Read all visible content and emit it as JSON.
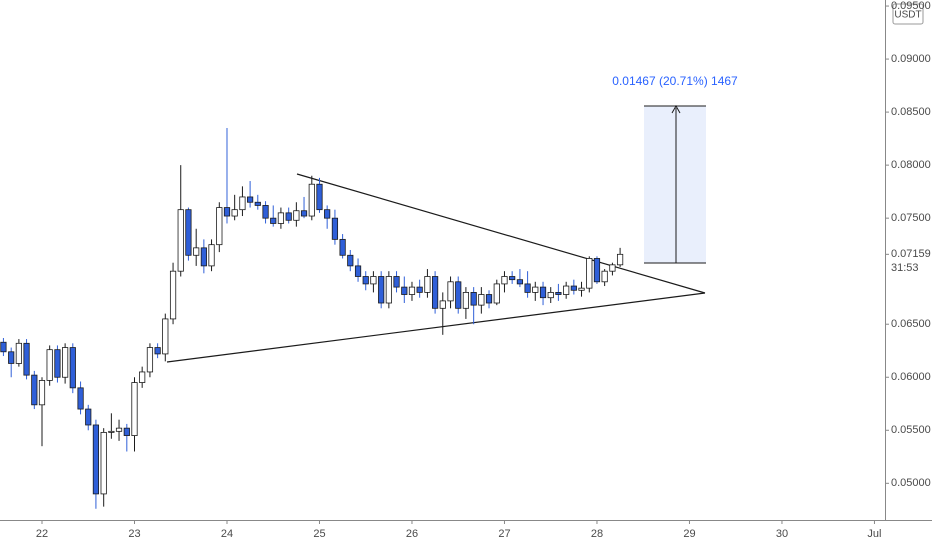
{
  "chart_data": {
    "type": "candlestick",
    "currency": "USDT",
    "x": [
      21.583,
      21.667,
      21.75,
      21.833,
      21.917,
      22,
      22.083,
      22.167,
      22.25,
      22.333,
      22.417,
      22.5,
      22.583,
      22.667,
      22.75,
      22.833,
      22.917,
      23,
      23.083,
      23.167,
      23.25,
      23.333,
      23.417,
      23.5,
      23.583,
      23.667,
      23.75,
      23.833,
      23.917,
      24,
      24.083,
      24.167,
      24.25,
      24.333,
      24.417,
      24.5,
      24.583,
      24.667,
      24.75,
      24.833,
      24.917,
      25,
      25.083,
      25.167,
      25.25,
      25.333,
      25.417,
      25.5,
      25.583,
      25.667,
      25.75,
      25.833,
      25.917,
      26,
      26.083,
      26.167,
      26.25,
      26.333,
      26.417,
      26.5,
      26.583,
      26.667,
      26.75,
      26.833,
      26.917,
      27,
      27.083,
      27.167,
      27.25,
      27.333,
      27.417,
      27.5,
      27.583,
      27.667,
      27.75,
      27.833,
      27.917,
      28,
      28.083,
      28.167,
      28.25
    ],
    "open": [
      0.0633,
      0.0624,
      0.0613,
      0.0632,
      0.0602,
      0.0574,
      0.0597,
      0.0626,
      0.06,
      0.0628,
      0.059,
      0.057,
      0.0555,
      0.049,
      0.0548,
      0.0549,
      0.0552,
      0.0545,
      0.0595,
      0.0605,
      0.0628,
      0.0622,
      0.0655,
      0.07,
      0.0758,
      0.0715,
      0.0722,
      0.0705,
      0.0725,
      0.076,
      0.0752,
      0.0758,
      0.077,
      0.0765,
      0.0762,
      0.075,
      0.0745,
      0.0755,
      0.0748,
      0.0757,
      0.0752,
      0.0782,
      0.0758,
      0.075,
      0.073,
      0.0715,
      0.0705,
      0.0695,
      0.0688,
      0.0695,
      0.067,
      0.0695,
      0.0685,
      0.0678,
      0.0685,
      0.068,
      0.0695,
      0.0665,
      0.0672,
      0.069,
      0.0665,
      0.068,
      0.0668,
      0.0678,
      0.067,
      0.0688,
      0.0695,
      0.0692,
      0.0688,
      0.068,
      0.0685,
      0.0675,
      0.068,
      0.0678,
      0.0686,
      0.0682,
      0.0684,
      0.0712,
      0.069,
      0.07,
      0.0706
    ],
    "high": [
      0.0637,
      0.0628,
      0.0636,
      0.0636,
      0.0606,
      0.06,
      0.063,
      0.063,
      0.0632,
      0.0632,
      0.0596,
      0.0574,
      0.056,
      0.0552,
      0.0566,
      0.056,
      0.0556,
      0.06,
      0.061,
      0.0632,
      0.0632,
      0.066,
      0.0708,
      0.08,
      0.076,
      0.074,
      0.073,
      0.073,
      0.0765,
      0.0835,
      0.0772,
      0.078,
      0.0785,
      0.0772,
      0.0766,
      0.0762,
      0.076,
      0.076,
      0.0765,
      0.077,
      0.079,
      0.0788,
      0.0762,
      0.0758,
      0.0735,
      0.072,
      0.0712,
      0.07,
      0.07,
      0.07,
      0.07,
      0.07,
      0.0695,
      0.069,
      0.0692,
      0.0702,
      0.07,
      0.068,
      0.0695,
      0.0695,
      0.0685,
      0.0685,
      0.0685,
      0.0682,
      0.0692,
      0.07,
      0.07,
      0.0702,
      0.07,
      0.069,
      0.069,
      0.0685,
      0.0688,
      0.069,
      0.0692,
      0.069,
      0.0714,
      0.0714,
      0.0702,
      0.0708,
      0.0722
    ],
    "low": [
      0.062,
      0.06,
      0.061,
      0.0598,
      0.057,
      0.0535,
      0.0592,
      0.0595,
      0.0594,
      0.0585,
      0.0565,
      0.055,
      0.0476,
      0.0478,
      0.0542,
      0.054,
      0.053,
      0.053,
      0.059,
      0.06,
      0.0618,
      0.0615,
      0.065,
      0.0695,
      0.071,
      0.0705,
      0.0698,
      0.07,
      0.0718,
      0.0745,
      0.0748,
      0.0752,
      0.076,
      0.0758,
      0.0745,
      0.0742,
      0.074,
      0.0745,
      0.0742,
      0.075,
      0.0748,
      0.0755,
      0.074,
      0.0725,
      0.0712,
      0.07,
      0.069,
      0.0682,
      0.068,
      0.0665,
      0.0665,
      0.068,
      0.067,
      0.0672,
      0.0675,
      0.0675,
      0.066,
      0.064,
      0.0665,
      0.066,
      0.0655,
      0.065,
      0.066,
      0.0665,
      0.0668,
      0.068,
      0.0688,
      0.0685,
      0.0675,
      0.0672,
      0.0668,
      0.067,
      0.0672,
      0.0674,
      0.0678,
      0.0676,
      0.068,
      0.0688,
      0.0686,
      0.0696,
      0.0704
    ],
    "close": [
      0.0624,
      0.0613,
      0.0632,
      0.0602,
      0.0574,
      0.0597,
      0.0626,
      0.06,
      0.0628,
      0.059,
      0.057,
      0.0555,
      0.049,
      0.0548,
      0.0549,
      0.0552,
      0.0545,
      0.0595,
      0.0605,
      0.0628,
      0.0622,
      0.0655,
      0.07,
      0.0758,
      0.0715,
      0.0722,
      0.0705,
      0.0725,
      0.076,
      0.0752,
      0.0758,
      0.077,
      0.0765,
      0.0762,
      0.075,
      0.0745,
      0.0755,
      0.0748,
      0.0757,
      0.0752,
      0.0782,
      0.0758,
      0.075,
      0.073,
      0.0715,
      0.0705,
      0.0695,
      0.0688,
      0.0695,
      0.067,
      0.0695,
      0.0685,
      0.0678,
      0.0685,
      0.068,
      0.0695,
      0.0665,
      0.0672,
      0.069,
      0.0665,
      0.068,
      0.0668,
      0.0678,
      0.067,
      0.0688,
      0.0695,
      0.0692,
      0.0688,
      0.068,
      0.0685,
      0.0675,
      0.068,
      0.0678,
      0.0686,
      0.0682,
      0.0684,
      0.0712,
      0.069,
      0.07,
      0.0706,
      0.07159
    ],
    "up_color": "#ffffff",
    "down_color": "#2f5fd8",
    "outline_color": "#1b1b1b",
    "xlim": [
      21.546,
      31.114
    ],
    "ylim": [
      0.04654,
      0.09557
    ],
    "xticks": [
      22,
      23,
      24,
      25,
      26,
      27,
      28,
      29,
      30,
      {
        "value": 31,
        "label": "Jul"
      }
    ],
    "yticks": [
      {
        "value": 0.095,
        "label": "0.09500"
      },
      {
        "value": 0.09,
        "label": "0.09000"
      },
      {
        "value": 0.085,
        "label": "0.08500"
      },
      {
        "value": 0.08,
        "label": "0.08000"
      },
      {
        "value": 0.075,
        "label": "0.07500"
      },
      {
        "value": 0.065,
        "label": "0.06500"
      },
      {
        "value": 0.06,
        "label": "0.06000"
      },
      {
        "value": 0.055,
        "label": "0.05500"
      },
      {
        "value": 0.05,
        "label": "0.05000"
      }
    ],
    "last_price": 0.07159,
    "countdown": "31:53",
    "measure_label": "0.01467 (20.71%) 1467",
    "grid": false
  }
}
